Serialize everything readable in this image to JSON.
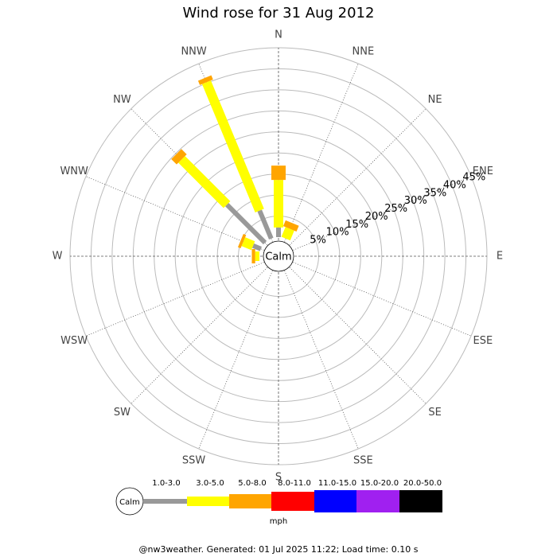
{
  "chart_data": {
    "type": "windrose",
    "title": "Wind rose for 31 Aug 2012",
    "categories": [
      "N",
      "NNE",
      "NE",
      "ENE",
      "E",
      "ESE",
      "SE",
      "SSE",
      "S",
      "SSW",
      "SW",
      "WSW",
      "W",
      "WNW",
      "NW",
      "NNW"
    ],
    "series": [
      {
        "name": "1.0-3.0",
        "color": "#999999",
        "values": [
          2.3,
          0,
          0,
          0,
          0,
          0,
          0,
          0,
          0,
          0,
          0,
          0,
          0,
          2,
          12.8,
          7.2
        ]
      },
      {
        "name": "3.0-5.0",
        "color": "#ffff00",
        "values": [
          11.3,
          2.5,
          0,
          0,
          0,
          0,
          0,
          0,
          0,
          0,
          0,
          0,
          1,
          2.5,
          15.2,
          33
        ]
      },
      {
        "name": "5.0-8.0",
        "color": "#ffa500",
        "values": [
          3.4,
          1.5,
          0,
          0,
          0,
          0,
          0,
          0,
          0,
          0,
          0,
          0,
          0.8,
          0.7,
          1.8,
          1.1
        ]
      },
      {
        "name": "8.0-11.0",
        "color": "#ff0000",
        "values": [
          0,
          0,
          0,
          0,
          0,
          0,
          0,
          0,
          0,
          0,
          0,
          0,
          0,
          0,
          0,
          0
        ]
      },
      {
        "name": "11.0-15.0",
        "color": "#0000ff",
        "values": [
          0,
          0,
          0,
          0,
          0,
          0,
          0,
          0,
          0,
          0,
          0,
          0,
          0,
          0,
          0,
          0
        ]
      },
      {
        "name": "15.0-20.0",
        "color": "#a020f0",
        "values": [
          0,
          0,
          0,
          0,
          0,
          0,
          0,
          0,
          0,
          0,
          0,
          0,
          0,
          0,
          0,
          0
        ]
      },
      {
        "name": "20.0-50.0",
        "color": "#000000",
        "values": [
          0,
          0,
          0,
          0,
          0,
          0,
          0,
          0,
          0,
          0,
          0,
          0,
          0,
          0,
          0,
          0
        ]
      }
    ],
    "rlim": [
      0,
      45
    ],
    "rticks": [
      {
        "value": 5,
        "label": "5%"
      },
      {
        "value": 10,
        "label": "10%"
      },
      {
        "value": 15,
        "label": "15%"
      },
      {
        "value": 20,
        "label": "20%"
      },
      {
        "value": 25,
        "label": "25%"
      },
      {
        "value": 30,
        "label": "30%"
      },
      {
        "value": 35,
        "label": "35%"
      },
      {
        "value": 40,
        "label": "40%"
      },
      {
        "value": 45,
        "label": "45%"
      }
    ],
    "calm_label": "Calm",
    "units": "mph",
    "footer": "@nw3weather.  Generated: 01 Jul 2025 11:22; Load time: 0.10 s"
  }
}
